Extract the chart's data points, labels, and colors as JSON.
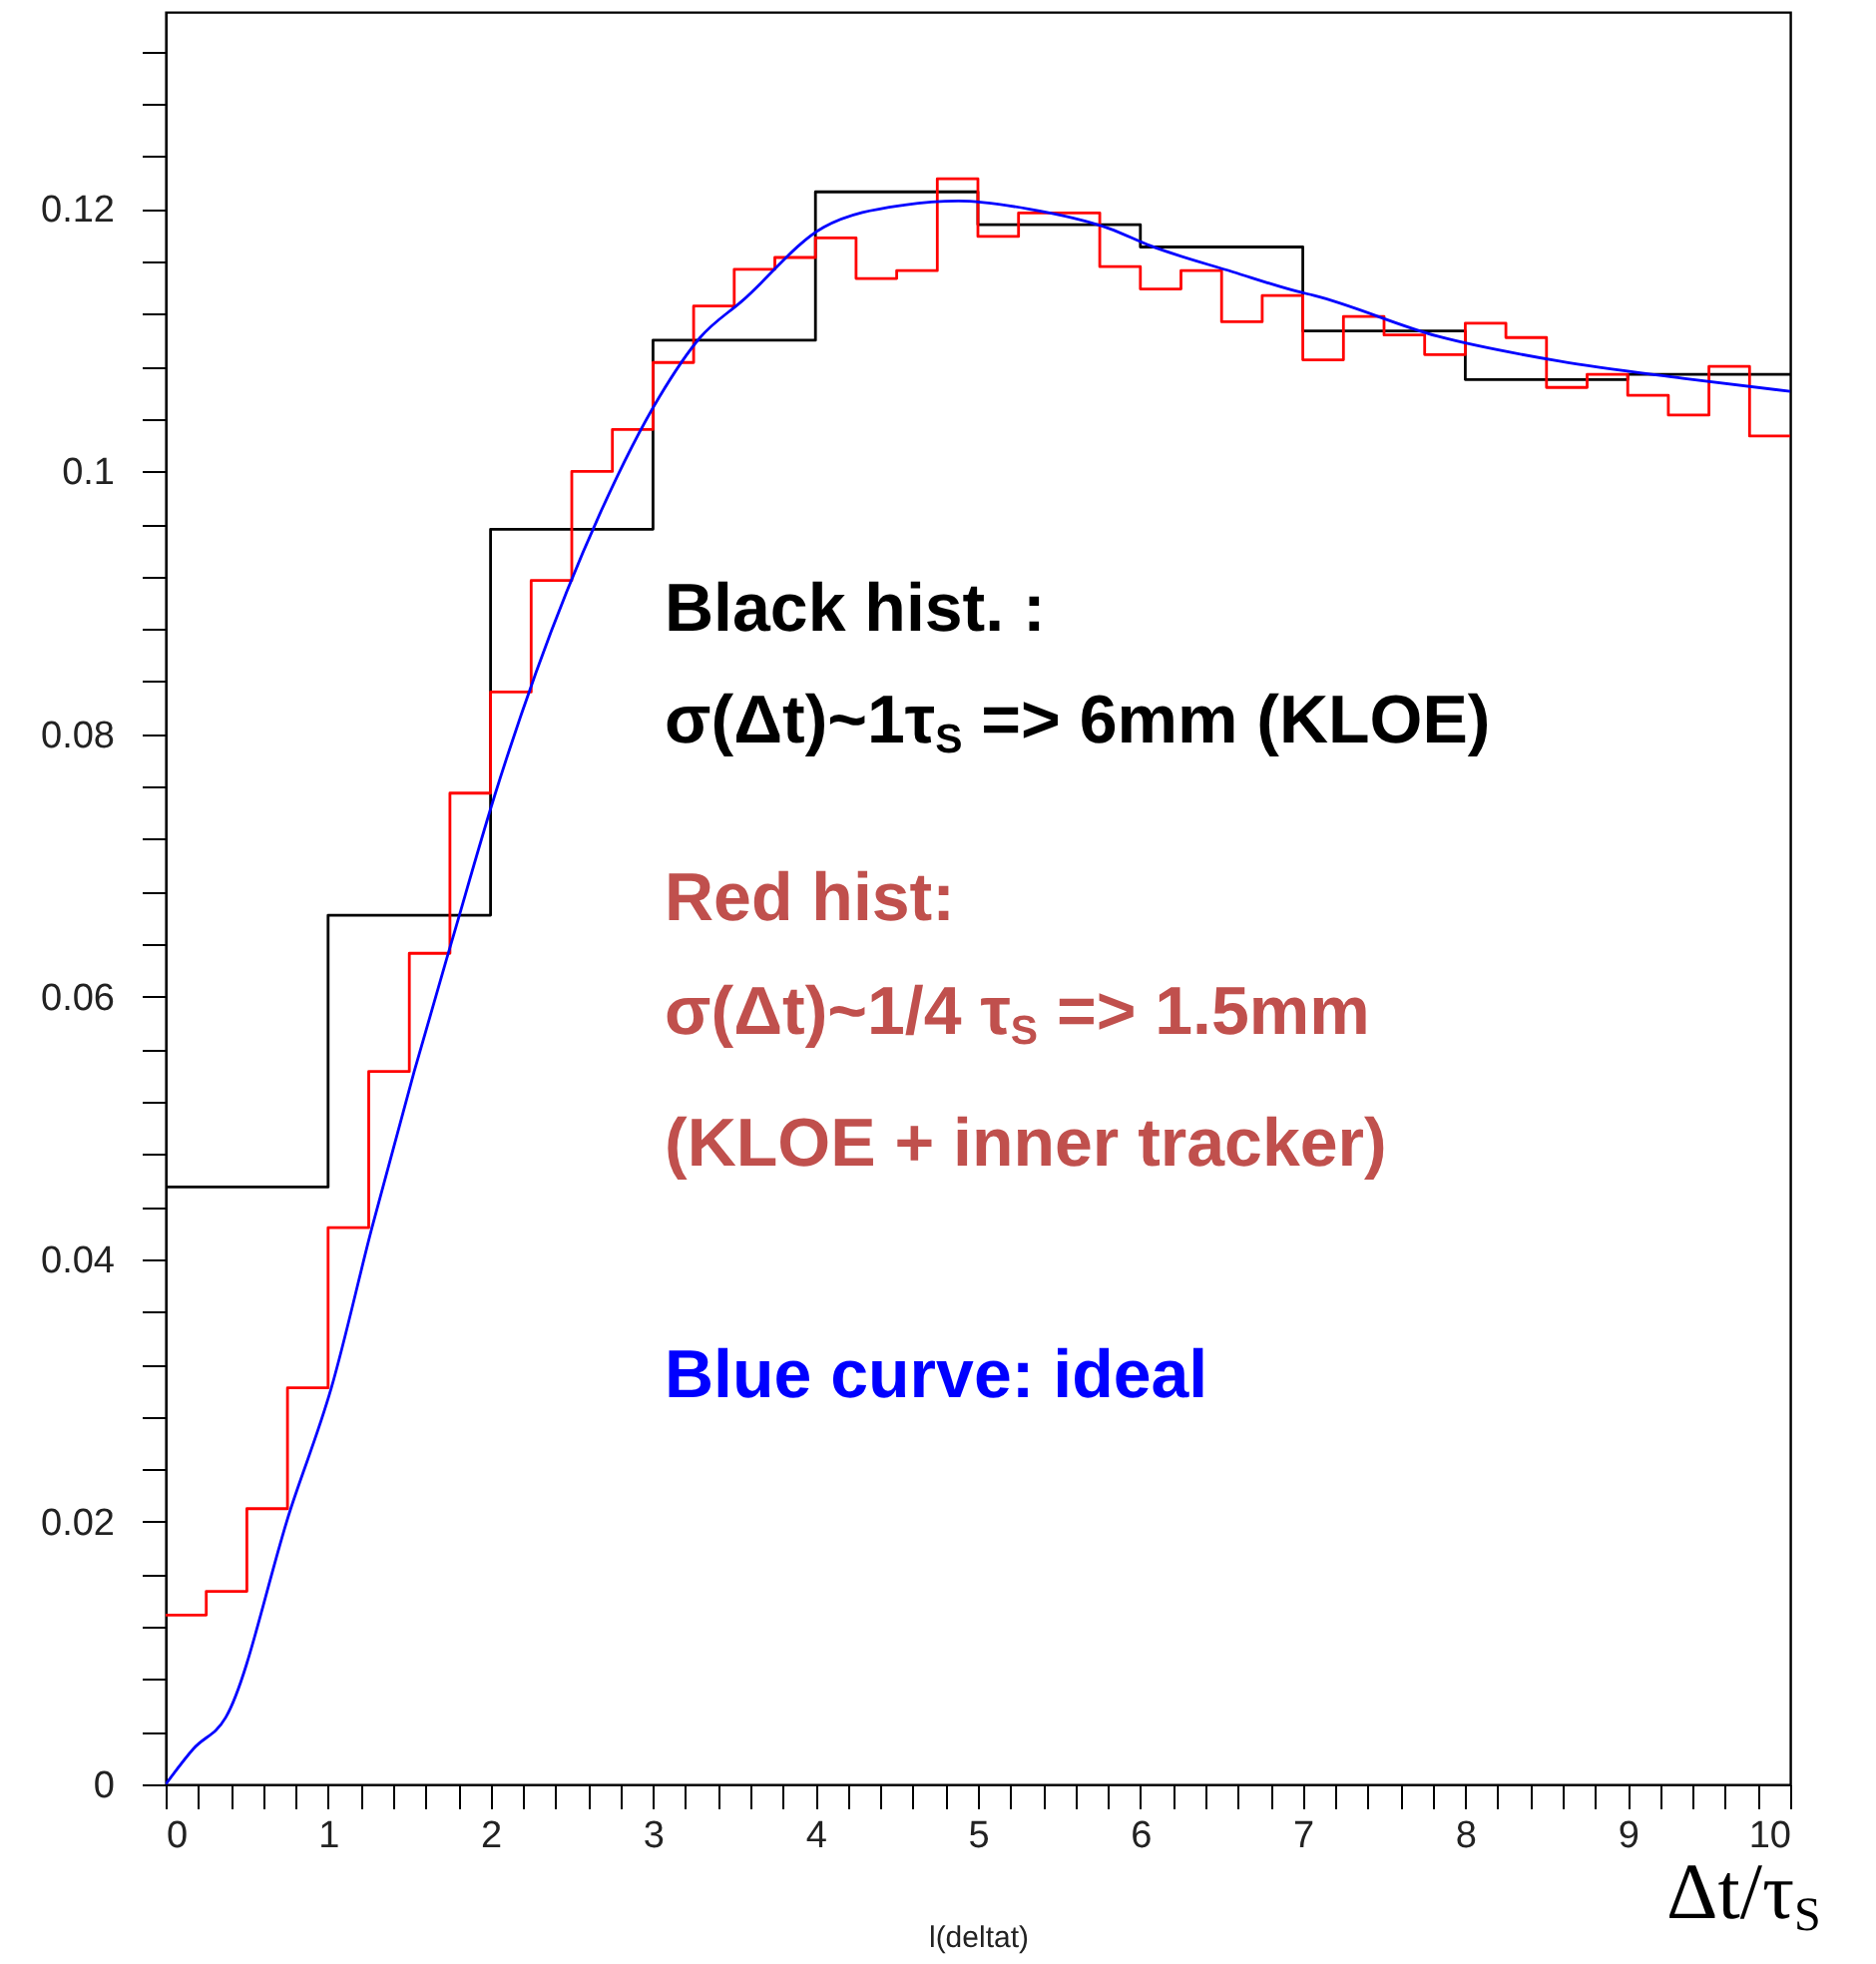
{
  "chart_data": {
    "type": "histogram",
    "xlabel": "l(deltat)",
    "xlim": [
      0,
      10
    ],
    "ylim": [
      0,
      0.135
    ],
    "xticks": [
      0,
      {
        "value": 0.2,
        "label": null
      },
      {
        "value": 0.4,
        "label": null
      },
      {
        "value": 0.6,
        "label": null
      },
      {
        "value": 0.8,
        "label": null
      },
      1,
      {
        "value": 1.2,
        "label": null
      },
      {
        "value": 1.4,
        "label": null
      },
      {
        "value": 1.6,
        "label": null
      },
      {
        "value": 1.8,
        "label": null
      },
      2,
      {
        "value": 2.2,
        "label": null
      },
      {
        "value": 2.4,
        "label": null
      },
      {
        "value": 2.6,
        "label": null
      },
      {
        "value": 2.8,
        "label": null
      },
      3,
      {
        "value": 3.2,
        "label": null
      },
      {
        "value": 3.4,
        "label": null
      },
      {
        "value": 3.6,
        "label": null
      },
      {
        "value": 3.8,
        "label": null
      },
      4,
      {
        "value": 4.2,
        "label": null
      },
      {
        "value": 4.4,
        "label": null
      },
      {
        "value": 4.6,
        "label": null
      },
      {
        "value": 4.8,
        "label": null
      },
      5,
      {
        "value": 5.2,
        "label": null
      },
      {
        "value": 5.4,
        "label": null
      },
      {
        "value": 5.6,
        "label": null
      },
      {
        "value": 5.8,
        "label": null
      },
      6,
      {
        "value": 6.2,
        "label": null
      },
      {
        "value": 6.4,
        "label": null
      },
      {
        "value": 6.6,
        "label": null
      },
      {
        "value": 6.8,
        "label": null
      },
      7,
      {
        "value": 7.2,
        "label": null
      },
      {
        "value": 7.4,
        "label": null
      },
      {
        "value": 7.6,
        "label": null
      },
      {
        "value": 7.8,
        "label": null
      },
      8,
      {
        "value": 8.2,
        "label": null
      },
      {
        "value": 8.4,
        "label": null
      },
      {
        "value": 8.6,
        "label": null
      },
      {
        "value": 8.8,
        "label": null
      },
      9,
      {
        "value": 9.2,
        "label": null
      },
      {
        "value": 9.4,
        "label": null
      },
      {
        "value": 9.6,
        "label": null
      },
      {
        "value": 9.8,
        "label": null
      },
      10
    ],
    "yticks": [
      0,
      {
        "value": 0.004,
        "label": null
      },
      {
        "value": 0.008,
        "label": null
      },
      {
        "value": 0.012,
        "label": null
      },
      {
        "value": 0.016,
        "label": null
      },
      0.02,
      {
        "value": 0.024,
        "label": null
      },
      {
        "value": 0.028,
        "label": null
      },
      {
        "value": 0.032,
        "label": null
      },
      {
        "value": 0.036,
        "label": null
      },
      0.04,
      {
        "value": 0.044,
        "label": null
      },
      {
        "value": 0.048,
        "label": null
      },
      {
        "value": 0.052,
        "label": null
      },
      {
        "value": 0.056,
        "label": null
      },
      0.06,
      {
        "value": 0.064,
        "label": null
      },
      {
        "value": 0.068,
        "label": null
      },
      {
        "value": 0.072,
        "label": null
      },
      {
        "value": 0.076,
        "label": null
      },
      0.08,
      {
        "value": 0.084,
        "label": null
      },
      {
        "value": 0.088,
        "label": null
      },
      {
        "value": 0.092,
        "label": null
      },
      {
        "value": 0.096,
        "label": null
      },
      0.1,
      {
        "value": 0.104,
        "label": null
      },
      {
        "value": 0.108,
        "label": null
      },
      {
        "value": 0.112,
        "label": null
      },
      {
        "value": 0.116,
        "label": null
      },
      0.12,
      {
        "value": 0.124,
        "label": null
      },
      {
        "value": 0.128,
        "label": null
      },
      {
        "value": 0.132,
        "label": null
      }
    ],
    "series": [
      {
        "color": "#000000",
        "bins": [
          0,
          1,
          2,
          3,
          4,
          5,
          6,
          7,
          8,
          9,
          10
        ],
        "values": [
          0.0455,
          0.0662,
          0.0956,
          0.11,
          0.1213,
          0.1188,
          0.1171,
          0.1107,
          0.107,
          0.1074
        ]
      },
      {
        "color": "#ff0000",
        "bins": [
          0,
          0.25,
          0.5,
          0.75,
          1,
          1.25,
          1.5,
          1.75,
          2,
          2.25,
          2.5,
          2.75,
          3,
          3.25,
          3.5,
          3.75,
          4,
          4.25,
          4.5,
          4.75,
          5,
          5.25,
          5.5,
          5.75,
          6,
          6.25,
          6.5,
          6.75,
          7,
          7.25,
          7.5,
          7.75,
          8,
          8.25,
          8.5,
          8.75,
          9,
          9.25,
          9.5,
          9.75,
          10
        ],
        "values": [
          0.0129,
          0.0147,
          0.021,
          0.0302,
          0.0424,
          0.0543,
          0.0633,
          0.0755,
          0.0832,
          0.0917,
          0.1,
          0.1032,
          0.1083,
          0.1126,
          0.1154,
          0.1163,
          0.1178,
          0.1147,
          0.1153,
          0.1223,
          0.1179,
          0.1197,
          0.1197,
          0.1156,
          0.1139,
          0.1153,
          0.1114,
          0.1134,
          0.1085,
          0.1118,
          0.1104,
          0.1089,
          0.1113,
          0.1102,
          0.1064,
          0.1074,
          0.1058,
          0.1043,
          0.108,
          0.1027
        ]
      },
      {
        "type": "line",
        "color": "#0000ff",
        "x": [
          0,
          0.17,
          0.37,
          0.77,
          1.02,
          1.27,
          1.53,
          1.78,
          2.03,
          2.28,
          2.67,
          3.04,
          3.29,
          3.55,
          4.05,
          4.55,
          4.88,
          5.31,
          5.81,
          6.06,
          6.57,
          6.97,
          7.07,
          7.83,
          8.58,
          9.34,
          10
        ],
        "values": [
          0,
          0.0027,
          0.0051,
          0.021,
          0.0302,
          0.0424,
          0.0543,
          0.065,
          0.0755,
          0.0847,
          0.0967,
          0.1057,
          0.1102,
          0.113,
          0.1186,
          0.1203,
          0.1206,
          0.12,
          0.1185,
          0.1172,
          0.1152,
          0.1137,
          0.1134,
          0.1103,
          0.1084,
          0.1071,
          0.1061
        ]
      }
    ],
    "annotations": [
      "Black hist. :",
      "σ(Δt)~1τ$_{S}$ => 6mm (KLOE)",
      "Red hist:",
      "σ(Δt)~1/4 τ$_{S}$ => 1.5mm",
      "(KLOE + inner tracker)",
      "Blue curve: ideal",
      "Δt/τ$_{S}$"
    ]
  }
}
